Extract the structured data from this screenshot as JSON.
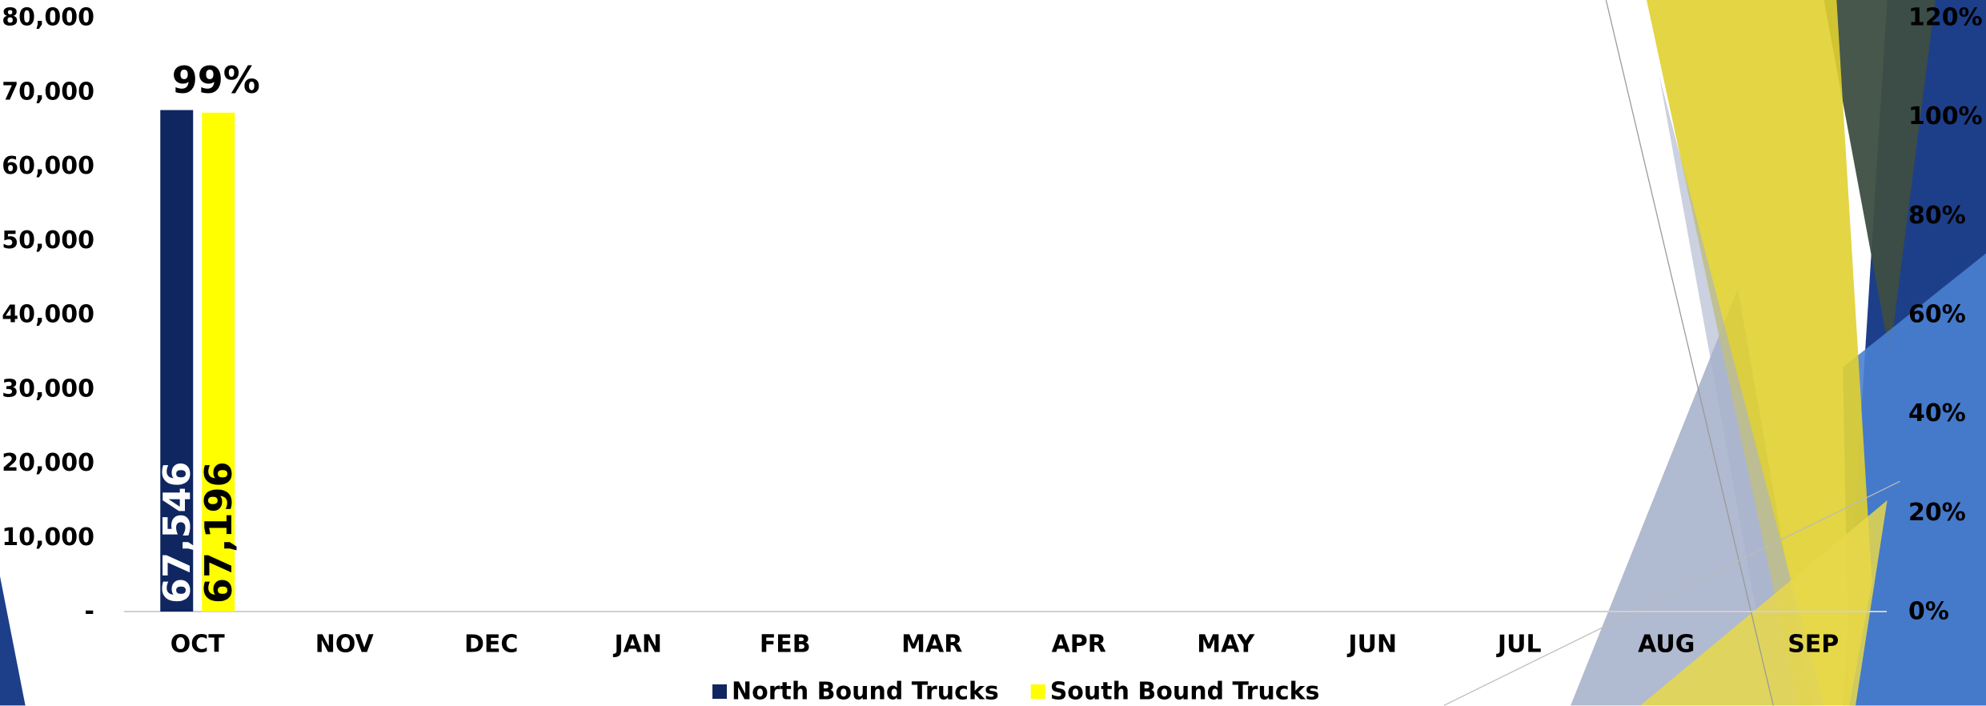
{
  "chart_data": {
    "type": "bar",
    "categories": [
      "OCT",
      "NOV",
      "DEC",
      "JAN",
      "FEB",
      "MAR",
      "APR",
      "MAY",
      "JUN",
      "JUL",
      "AUG",
      "SEP"
    ],
    "series": [
      {
        "name": "North Bound Trucks",
        "color": "#0f2660",
        "label_color": "#ffffff",
        "values": [
          67546,
          null,
          null,
          null,
          null,
          null,
          null,
          null,
          null,
          null,
          null,
          null
        ],
        "value_labels": [
          "67,546",
          null,
          null,
          null,
          null,
          null,
          null,
          null,
          null,
          null,
          null,
          null
        ]
      },
      {
        "name": "South Bound Trucks",
        "color": "#ffff00",
        "label_color": "#000000",
        "values": [
          67196,
          null,
          null,
          null,
          null,
          null,
          null,
          null,
          null,
          null,
          null,
          null
        ],
        "value_labels": [
          "67,196",
          null,
          null,
          null,
          null,
          null,
          null,
          null,
          null,
          null,
          null,
          null
        ]
      }
    ],
    "percent_series": {
      "axis": "y2",
      "values": [
        99,
        null,
        null,
        null,
        null,
        null,
        null,
        null,
        null,
        null,
        null,
        null
      ],
      "value_labels": [
        "99%",
        null,
        null,
        null,
        null,
        null,
        null,
        null,
        null,
        null,
        null,
        null
      ]
    },
    "ylim": [
      0,
      80000
    ],
    "yticks": [
      {
        "value": 0,
        "label": "-"
      },
      {
        "value": 10000,
        "label": "10,000"
      },
      {
        "value": 20000,
        "label": "20,000"
      },
      {
        "value": 30000,
        "label": "30,000"
      },
      {
        "value": 40000,
        "label": "40,000"
      },
      {
        "value": 50000,
        "label": "50,000"
      },
      {
        "value": 60000,
        "label": "60,000"
      },
      {
        "value": 70000,
        "label": "70,000"
      },
      {
        "value": 80000,
        "label": "80,000"
      }
    ],
    "y2lim": [
      0,
      120
    ],
    "y2ticks": [
      {
        "value": 0,
        "label": "0%"
      },
      {
        "value": 20,
        "label": "20%"
      },
      {
        "value": 40,
        "label": "40%"
      },
      {
        "value": 60,
        "label": "60%"
      },
      {
        "value": 80,
        "label": "80%"
      },
      {
        "value": 100,
        "label": "100%"
      },
      {
        "value": 120,
        "label": "120%"
      }
    ],
    "legend": "bottom"
  }
}
